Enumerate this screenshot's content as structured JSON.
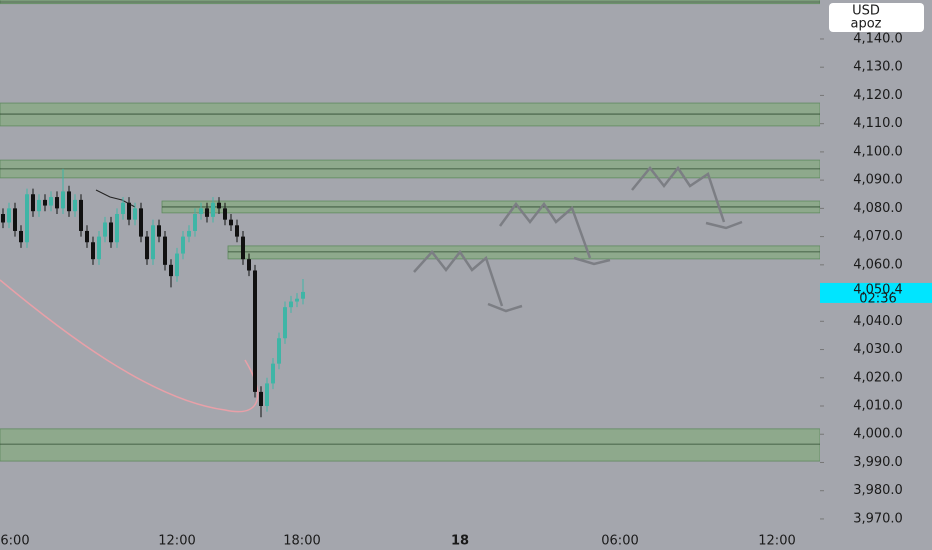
{
  "chart_data": {
    "type": "candlestick",
    "currency": "USD",
    "user": "apoz",
    "ylim": [
      3959,
      4153.8
    ],
    "yticks": [
      {
        "value": 4140,
        "label": "4,140.0"
      },
      {
        "value": 4130,
        "label": "4,130.0"
      },
      {
        "value": 4120,
        "label": "4,120.0"
      },
      {
        "value": 4110,
        "label": "4,110.0"
      },
      {
        "value": 4100,
        "label": "4,100.0"
      },
      {
        "value": 4090,
        "label": "4,090.0"
      },
      {
        "value": 4080,
        "label": "4,080.0"
      },
      {
        "value": 4070,
        "label": "4,070.0"
      },
      {
        "value": 4060,
        "label": "4,060.0"
      },
      {
        "value": 4050,
        "label": "4,050.0"
      },
      {
        "value": 4040,
        "label": "4,040.0"
      },
      {
        "value": 4030,
        "label": "4,030.0"
      },
      {
        "value": 4020,
        "label": "4,020.0"
      },
      {
        "value": 4010,
        "label": "4,010.0"
      },
      {
        "value": 4000,
        "label": "4,000.0"
      },
      {
        "value": 3990,
        "label": "3,990.0"
      },
      {
        "value": 3980,
        "label": "3,980.0"
      },
      {
        "value": 3970,
        "label": "3,970.0"
      }
    ],
    "time_labels": [
      "6:00",
      "12:00",
      "18:00",
      "18",
      "06:00",
      "12:00"
    ],
    "up_color": "#3fb5a6",
    "down_color": "#111111",
    "zone_color": "#8ea98c",
    "open": [
      4078,
      4075,
      4080,
      4072,
      4068,
      4085,
      4079,
      4083,
      4081,
      4084,
      4080,
      4086,
      4079,
      4083,
      4072,
      4068,
      4062,
      4070,
      4075,
      4068,
      4078,
      4082,
      4076,
      4080,
      4070,
      4062,
      4074,
      4070,
      4060,
      4056,
      4064,
      4070,
      4072,
      4078,
      4080,
      4077,
      4082,
      4080,
      4076,
      4074,
      4070,
      4062,
      4058,
      4015,
      4010,
      4018,
      4025,
      4034,
      4045,
      4047,
      4048
    ],
    "high": [
      4080,
      4082,
      4082,
      4074,
      4087,
      4087,
      4085,
      4085,
      4086,
      4086,
      4094,
      4088,
      4085,
      4085,
      4074,
      4070,
      4072,
      4077,
      4077,
      4080,
      4084,
      4084,
      4082,
      4082,
      4072,
      4076,
      4076,
      4072,
      4062,
      4066,
      4072,
      4074,
      4080,
      4082,
      4082,
      4084,
      4084,
      4082,
      4078,
      4076,
      4072,
      4064,
      4060,
      4017,
      4020,
      4027,
      4036,
      4047,
      4049,
      4050,
      4055
    ],
    "low": [
      4073,
      4073,
      4070,
      4066,
      4066,
      4077,
      4077,
      4079,
      4079,
      4078,
      4078,
      4077,
      4077,
      4070,
      4066,
      4060,
      4060,
      4068,
      4066,
      4066,
      4076,
      4074,
      4074,
      4068,
      4060,
      4060,
      4068,
      4058,
      4052,
      4054,
      4062,
      4068,
      4070,
      4076,
      4075,
      4075,
      4078,
      4074,
      4072,
      4068,
      4060,
      4056,
      4013,
      4006,
      4008,
      4016,
      4023,
      4032,
      4043,
      4045,
      4046
    ],
    "close": [
      4075,
      4080,
      4072,
      4068,
      4085,
      4079,
      4083,
      4081,
      4084,
      4080,
      4086,
      4079,
      4083,
      4072,
      4068,
      4062,
      4070,
      4075,
      4068,
      4078,
      4082,
      4076,
      4080,
      4070,
      4062,
      4074,
      4070,
      4060,
      4056,
      4064,
      4070,
      4072,
      4078,
      4080,
      4077,
      4082,
      4080,
      4076,
      4074,
      4070,
      4062,
      4058,
      4015,
      4010,
      4018,
      4025,
      4034,
      4045,
      4047,
      4048,
      4050.4
    ],
    "zones": [
      {
        "from": 4152.5,
        "to": 4153.8,
        "line": 4153.1
      },
      {
        "from": 4109.2,
        "to": 4117.3,
        "line": 4113.4
      },
      {
        "from": 4090.8,
        "to": 4097.1,
        "line": 4094
      },
      {
        "from": 4078.4,
        "to": 4082.6,
        "line": 4080.5
      },
      {
        "from": 4062.1,
        "to": 4066.7,
        "line": 4064.6
      },
      {
        "from": 3990.5,
        "to": 4001.9,
        "line": 3996.5
      }
    ],
    "last_price": {
      "value": 4050.4,
      "label": "4,050.4"
    },
    "countdown": "02:36"
  }
}
